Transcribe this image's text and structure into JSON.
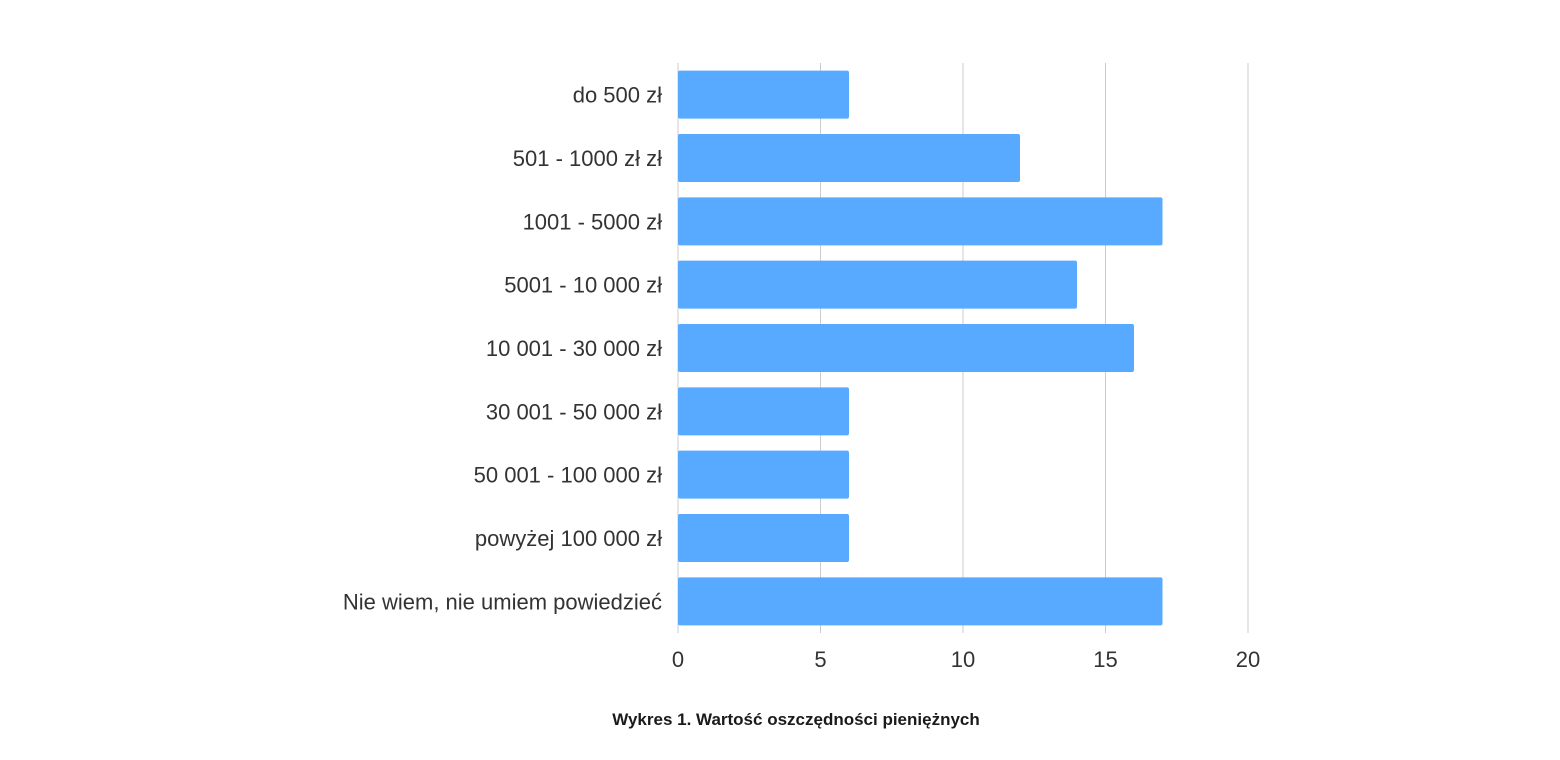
{
  "chart_data": {
    "type": "bar",
    "orientation": "horizontal",
    "categories": [
      "do 500 zł",
      "501 - 1000 zł zł",
      "1001 - 5000 zł",
      "5001 - 10 000 zł",
      "10 001 - 30 000 zł",
      "30 001 - 50 000 zł",
      "50 001 - 100 000 zł",
      "powyżej 100 000 zł",
      "Nie wiem, nie umiem powiedzieć"
    ],
    "values": [
      6,
      12,
      17,
      14,
      16,
      6,
      6,
      6,
      17
    ],
    "xlim": [
      0,
      20
    ],
    "xticks": [
      0,
      5,
      10,
      15,
      20
    ],
    "grid": true,
    "bar_color": "#57aaff",
    "grid_color": "#cccccc"
  },
  "caption": "Wykres 1. Wartość oszczędności pieniężnych"
}
